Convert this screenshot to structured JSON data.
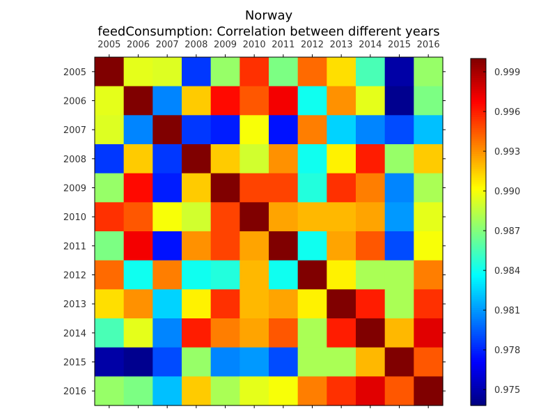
{
  "chart_data": {
    "type": "heatmap",
    "title": "Norway",
    "subtitle": "feedConsumption: Correlation between different years",
    "x_categories": [
      "2005",
      "2006",
      "2007",
      "2008",
      "2009",
      "2010",
      "2011",
      "2012",
      "2013",
      "2014",
      "2015",
      "2016"
    ],
    "y_categories": [
      "2005",
      "2006",
      "2007",
      "2008",
      "2009",
      "2010",
      "2011",
      "2012",
      "2013",
      "2014",
      "2015",
      "2016"
    ],
    "values": [
      [
        1.0,
        0.9895,
        0.9893,
        0.9785,
        0.9875,
        0.9955,
        0.9868,
        0.994,
        0.991,
        0.9855,
        0.9748,
        0.9875
      ],
      [
        0.9895,
        1.0,
        0.9805,
        0.9915,
        0.9965,
        0.9945,
        0.997,
        0.984,
        0.993,
        0.9895,
        0.9742,
        0.9868
      ],
      [
        0.9893,
        0.9805,
        1.0,
        0.9785,
        0.9778,
        0.99,
        0.9775,
        0.9935,
        0.9825,
        0.9805,
        0.979,
        0.982
      ],
      [
        0.9785,
        0.9915,
        0.9785,
        1.0,
        0.9915,
        0.989,
        0.993,
        0.984,
        0.9905,
        0.996,
        0.9875,
        0.9915
      ],
      [
        0.9875,
        0.9965,
        0.9778,
        0.9915,
        1.0,
        0.995,
        0.995,
        0.9845,
        0.9955,
        0.9935,
        0.9805,
        0.988
      ],
      [
        0.9955,
        0.9945,
        0.99,
        0.989,
        0.995,
        1.0,
        0.9925,
        0.992,
        0.992,
        0.9925,
        0.981,
        0.9895
      ],
      [
        0.9868,
        0.997,
        0.9775,
        0.993,
        0.995,
        0.9925,
        1.0,
        0.984,
        0.9925,
        0.9945,
        0.979,
        0.99
      ],
      [
        0.994,
        0.984,
        0.9935,
        0.984,
        0.9845,
        0.992,
        0.984,
        1.0,
        0.9905,
        0.988,
        0.988,
        0.9935
      ],
      [
        0.991,
        0.993,
        0.9825,
        0.9905,
        0.9955,
        0.992,
        0.9925,
        0.9905,
        1.0,
        0.996,
        0.988,
        0.9955
      ],
      [
        0.9855,
        0.9895,
        0.9805,
        0.996,
        0.9935,
        0.9925,
        0.9945,
        0.988,
        0.996,
        1.0,
        0.992,
        0.9975
      ],
      [
        0.9748,
        0.9742,
        0.979,
        0.9875,
        0.9805,
        0.981,
        0.979,
        0.988,
        0.988,
        0.992,
        1.0,
        0.9945
      ],
      [
        0.9875,
        0.9868,
        0.982,
        0.9915,
        0.988,
        0.9895,
        0.99,
        0.9935,
        0.9955,
        0.9975,
        0.9945,
        1.0
      ]
    ],
    "colorbar": {
      "vmin": 0.9738,
      "vmax": 1.0,
      "ticks": [
        0.975,
        0.978,
        0.981,
        0.984,
        0.987,
        0.99,
        0.993,
        0.996,
        0.999
      ],
      "tick_labels": [
        "0.975",
        "0.978",
        "0.981",
        "0.984",
        "0.987",
        "0.990",
        "0.993",
        "0.996",
        "0.999"
      ]
    },
    "colormap": "jet",
    "x_tick_position": "top",
    "grid": false
  }
}
